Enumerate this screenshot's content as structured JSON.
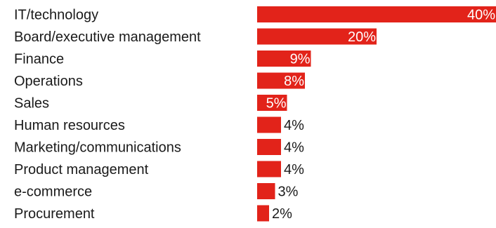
{
  "chart_data": {
    "type": "bar",
    "orientation": "horizontal",
    "categories": [
      "IT/technology",
      "Board/executive management",
      "Finance",
      "Operations",
      "Sales",
      "Human resources",
      "Marketing/communications",
      "Product management",
      "e-commerce",
      "Procurement"
    ],
    "values": [
      40,
      20,
      9,
      8,
      5,
      4,
      4,
      4,
      3,
      2
    ],
    "value_labels": [
      "40%",
      "20%",
      "9%",
      "8%",
      "5%",
      "4%",
      "4%",
      "4%",
      "3%",
      "2%"
    ],
    "unit": "%",
    "xlim": [
      0,
      40
    ],
    "grid": false,
    "legend": "none",
    "colors": {
      "bar": "#e2231a",
      "label_inside": "#ffffff",
      "label_outside": "#1a1a1a",
      "text": "#1a1a1a"
    }
  }
}
